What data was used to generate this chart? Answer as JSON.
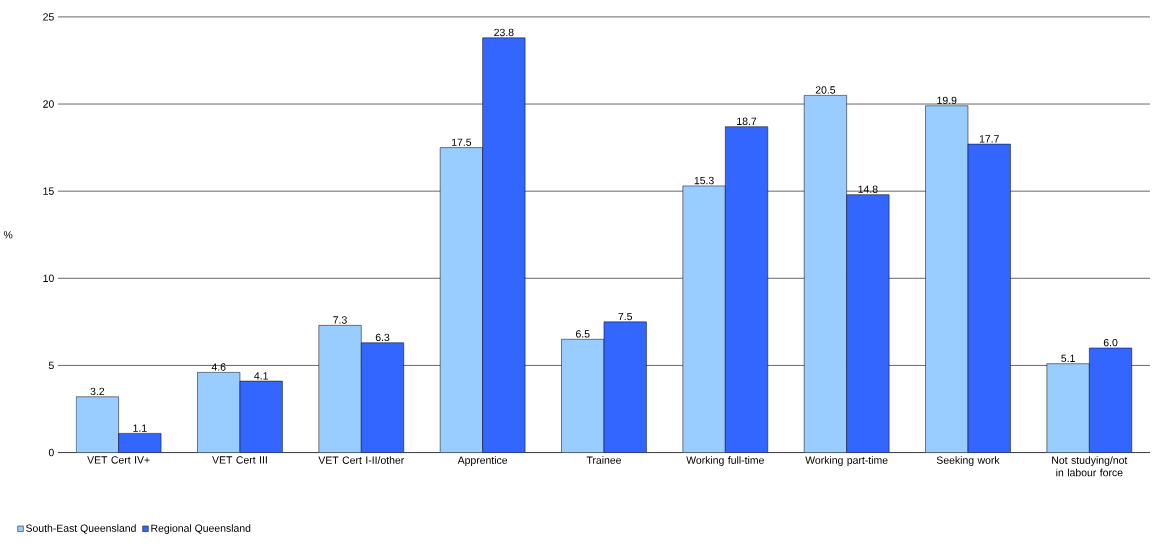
{
  "chart_data": {
    "type": "bar",
    "ylabel": "%",
    "categories": [
      "VET Cert IV+",
      "VET Cert III",
      "VET Cert I-II/other",
      "Apprentice",
      "Trainee",
      "Working full-time",
      "Working part-time",
      "Seeking work",
      "Not studying/not in labour force"
    ],
    "series": [
      {
        "name": "South-East Queensland",
        "color": "#99ccff",
        "values": [
          3.2,
          4.6,
          7.3,
          17.5,
          6.5,
          15.3,
          20.5,
          19.9,
          5.1
        ],
        "value_labels": [
          "3.2",
          "4.6",
          "7.3",
          "17.5",
          "6.5",
          "15.3",
          "20.5",
          "19.9",
          "5.1"
        ]
      },
      {
        "name": "Regional Queensland",
        "color": "#3366ff",
        "values": [
          1.1,
          4.1,
          6.3,
          23.8,
          7.5,
          18.7,
          14.8,
          17.7,
          6.0
        ],
        "value_labels": [
          "1.1",
          "4.1",
          "6.3",
          "23.8",
          "7.5",
          "18.7",
          "14.8",
          "17.7",
          "6.0"
        ]
      }
    ],
    "ylim": [
      0,
      25
    ],
    "yticks": [
      0,
      5,
      10,
      15,
      20,
      25
    ],
    "grid": "y",
    "legend": "bottom left"
  }
}
